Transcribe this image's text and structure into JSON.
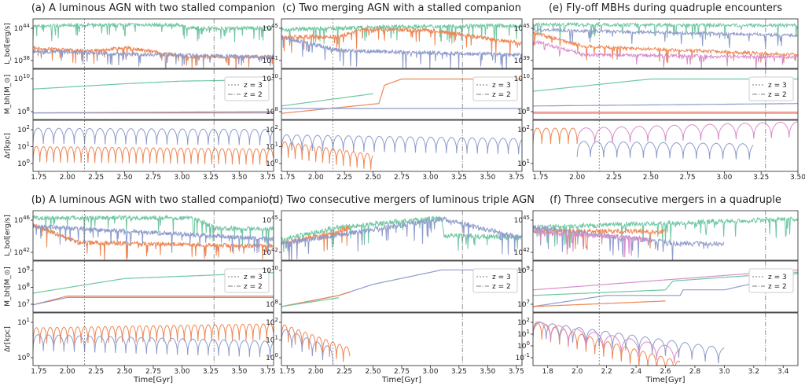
{
  "colors": {
    "green": "#6fc7a2",
    "orange": "#ee8654",
    "blue": "#8e9bcb",
    "pink": "#d98bcb",
    "gray": "#7a7a7a"
  },
  "panels": [
    {
      "id": "a",
      "title": "(a) A luminous AGN with two stalled companion",
      "xticks": [
        "1.75",
        "2.00",
        "2.25",
        "2.50",
        "2.75",
        "3.00",
        "3.25",
        "3.50",
        "3.75"
      ],
      "xlim": [
        1.7,
        3.8
      ],
      "lum_ticks": [
        "10^44",
        "10^38"
      ],
      "mass_ticks": [
        "10^10",
        "10^8"
      ],
      "dist_ticks": [
        "10^2",
        "10^1",
        "10^0"
      ],
      "xlabel": "",
      "z3": 2.15,
      "z2": 3.28
    },
    {
      "id": "c",
      "title": "(c) Two merging AGN with a stalled companion",
      "xticks": [
        "1.75",
        "2.00",
        "2.25",
        "2.50",
        "2.75",
        "3.00",
        "3.25",
        "3.50",
        "3.75"
      ],
      "xlim": [
        1.7,
        3.8
      ],
      "lum_ticks": [
        "10^45",
        "10^41"
      ],
      "mass_ticks": [
        "10^10",
        "10^8"
      ],
      "dist_ticks": [
        "10^2",
        "10^1",
        "10^0"
      ],
      "xlabel": "",
      "z3": 2.15,
      "z2": 3.28
    },
    {
      "id": "e",
      "title": "(e) Fly-off MBHs during quadruple encounters",
      "xticks": [
        "1.75",
        "2.00",
        "2.25",
        "2.50",
        "2.75",
        "3.00",
        "3.25",
        "3.50"
      ],
      "xlim": [
        1.7,
        3.5
      ],
      "lum_ticks": [
        "10^45",
        "10^39"
      ],
      "mass_ticks": [
        "10^10",
        "10^8"
      ],
      "dist_ticks": [
        "10^2",
        "10^1"
      ],
      "xlabel": "",
      "z3": 2.15,
      "z2": 3.28
    },
    {
      "id": "b",
      "title": "(b) A luminous AGN with two stalled companion",
      "xticks": [
        "1.75",
        "2.00",
        "2.25",
        "2.50",
        "2.75",
        "3.00",
        "3.25",
        "3.50",
        "3.75"
      ],
      "xlim": [
        1.7,
        3.8
      ],
      "lum_ticks": [
        "10^46",
        "10^42"
      ],
      "mass_ticks": [
        "10^9",
        "10^8",
        "10^7"
      ],
      "dist_ticks": [
        "10^1",
        "10^0"
      ],
      "xlabel": "Time[Gyr]",
      "z3": 2.15,
      "z2": 3.28
    },
    {
      "id": "d",
      "title": "(d) Two consecutive mergers of luminous triple AGN",
      "xticks": [
        "1.75",
        "2.00",
        "2.25",
        "2.50",
        "2.75",
        "3.00",
        "3.25",
        "3.50",
        "3.75"
      ],
      "xlim": [
        1.7,
        3.8
      ],
      "lum_ticks": [
        "10^45",
        "10^42"
      ],
      "mass_ticks": [
        "10^10",
        "10^8"
      ],
      "dist_ticks": [
        "10^2",
        "10^1",
        "10^0"
      ],
      "xlabel": "Time[Gyr]",
      "z3": 2.15,
      "z2": 3.28
    },
    {
      "id": "f",
      "title": "(f) Three consecutive mergers in a quadruple",
      "xticks": [
        "1.8",
        "2.0",
        "2.2",
        "2.4",
        "2.6",
        "2.8",
        "3.0",
        "3.2",
        "3.4"
      ],
      "xlim": [
        1.7,
        3.5
      ],
      "lum_ticks": [
        "10^45",
        "10^42"
      ],
      "mass_ticks": [
        "10^9",
        "10^7"
      ],
      "dist_ticks": [
        "10^2",
        "10^1",
        "10^0",
        "10^-1"
      ],
      "xlabel": "Time[Gyr]",
      "z3": 2.15,
      "z2": 3.28
    }
  ],
  "ylabels": {
    "lum": "L_bol[erg/s]",
    "mass": "M_bh[M_⊙]",
    "dist": "Δr[kpc]"
  },
  "legend": {
    "z3": "z = 3",
    "z2": "z = 2"
  },
  "chart_data": [
    {
      "type": "line",
      "panel": "a",
      "title": "(a) A luminous AGN with two stalled companion",
      "ylabel": "L_bol[erg/s], M_bh[M_⊙], Δr[kpc]",
      "xlim": [
        1.7,
        3.8
      ],
      "series": [
        {
          "values": [
            [
              1.7,
              44.3
            ],
            [
              2.0,
              44.5
            ],
            [
              2.5,
              44.6
            ],
            [
              3.0,
              44.5
            ],
            [
              3.05,
              44.0
            ],
            [
              3.8,
              44.0
            ]
          ]
        },
        {
          "values": [
            [
              1.7,
              40.5
            ],
            [
              2.2,
              40.0
            ],
            [
              2.5,
              40.6
            ],
            [
              3.05,
              39.0
            ],
            [
              3.8,
              39.0
            ]
          ]
        },
        {
          "values": [
            [
              1.7,
              40.0
            ],
            [
              2.5,
              39.5
            ],
            [
              3.0,
              39.3
            ],
            [
              3.8,
              39.0
            ]
          ]
        }
      ],
      "mass": {
        "green": [
          [
            1.7,
            9.4
          ],
          [
            2.5,
            9.8
          ],
          [
            3.0,
            10.0
          ],
          [
            3.8,
            10.1
          ]
        ],
        "orange": [
          [
            1.7,
            7.6
          ],
          [
            3.8,
            7.7
          ]
        ],
        "blue": [
          [
            1.7,
            7.6
          ],
          [
            3.8,
            7.6
          ]
        ]
      },
      "dist": {
        "orange": [
          [
            1.7,
            0.6
          ],
          [
            3.8,
            0.4
          ]
        ],
        "blue": [
          [
            1.7,
            2.0
          ],
          [
            3.8,
            1.9
          ]
        ]
      }
    },
    {
      "type": "line",
      "panel": "c",
      "title": "(c) Two merging AGN with a stalled companion",
      "xlim": [
        1.7,
        3.8
      ],
      "series": [
        {
          "values": [
            [
              1.7,
              44.6
            ],
            [
              2.2,
              44.8
            ],
            [
              2.6,
              45.0
            ],
            [
              3.8,
              45.2
            ]
          ]
        },
        {
          "values": [
            [
              1.7,
              43.5
            ],
            [
              2.2,
              43.5
            ],
            [
              2.4,
              44.6
            ],
            [
              3.0,
              44.5
            ],
            [
              3.8,
              42.5
            ]
          ]
        },
        {
          "values": [
            [
              1.7,
              43.5
            ],
            [
              2.2,
              41.5
            ],
            [
              3.8,
              40.8
            ]
          ]
        }
      ],
      "mass": {
        "green": [
          [
            1.7,
            7.8
          ],
          [
            2.5,
            8.8
          ]
        ],
        "orange": [
          [
            1.7,
            7.2
          ],
          [
            2.55,
            8.0
          ],
          [
            2.6,
            9.5
          ],
          [
            2.75,
            10.0
          ],
          [
            3.8,
            10.0
          ]
        ],
        "blue": [
          [
            1.7,
            7.6
          ],
          [
            3.8,
            7.6
          ]
        ]
      },
      "dist": {
        "orange": [
          [
            1.7,
            1.0
          ],
          [
            2.5,
            0.0
          ]
        ],
        "blue": [
          [
            1.7,
            1.5
          ],
          [
            3.8,
            1.2
          ]
        ]
      }
    },
    {
      "type": "line",
      "panel": "e",
      "title": "(e) Fly-off MBHs during quadruple encounters",
      "xlim": [
        1.7,
        3.5
      ],
      "series": [
        {
          "values": [
            [
              1.7,
              45.0
            ],
            [
              3.5,
              44.8
            ]
          ]
        },
        {
          "values": [
            [
              1.7,
              43.5
            ],
            [
              2.05,
              41.0
            ],
            [
              3.5,
              39.5
            ]
          ]
        },
        {
          "values": [
            [
              1.7,
              44.0
            ],
            [
              3.5,
              43.0
            ]
          ]
        },
        {
          "values": [
            [
              1.7,
              42.0
            ],
            [
              2.05,
              39.5
            ],
            [
              3.5,
              39.0
            ]
          ]
        }
      ],
      "mass": {
        "green": [
          [
            1.7,
            9.0
          ],
          [
            2.5,
            10.0
          ],
          [
            3.5,
            10.0
          ]
        ],
        "blue": [
          [
            1.7,
            7.8
          ],
          [
            3.5,
            8.0
          ]
        ],
        "orange": [
          [
            1.7,
            7.3
          ],
          [
            3.5,
            7.3
          ]
        ],
        "pink": [
          [
            1.7,
            7.2
          ],
          [
            3.5,
            7.2
          ]
        ]
      },
      "dist": {
        "orange": [
          [
            1.7,
            2.0
          ],
          [
            2.0,
            2.0
          ]
        ],
        "blue": [
          [
            2.0,
            1.0
          ],
          [
            3.2,
            0.8
          ]
        ],
        "pink": [
          [
            2.0,
            2.0
          ],
          [
            3.5,
            2.5
          ]
        ]
      }
    },
    {
      "type": "line",
      "panel": "b",
      "title": "(b) A luminous AGN with two stalled companion",
      "xlabel": "Time[Gyr]",
      "xlim": [
        1.7,
        3.8
      ],
      "series": [
        {
          "values": [
            [
              1.7,
              45.5
            ],
            [
              3.1,
              45.5
            ],
            [
              3.3,
              44.0
            ],
            [
              3.8,
              44.0
            ]
          ]
        },
        {
          "values": [
            [
              1.7,
              44.5
            ],
            [
              2.1,
              42.0
            ],
            [
              3.8,
              41.5
            ]
          ]
        },
        {
          "values": [
            [
              1.7,
              44.3
            ],
            [
              3.8,
              42.5
            ]
          ]
        }
      ],
      "mass": {
        "green": [
          [
            1.7,
            7.8
          ],
          [
            2.5,
            8.8
          ],
          [
            3.8,
            9.2
          ]
        ],
        "orange": [
          [
            1.7,
            7.0
          ],
          [
            2.0,
            7.6
          ],
          [
            3.8,
            7.6
          ]
        ],
        "blue": [
          [
            1.7,
            7.0
          ],
          [
            2.0,
            7.5
          ],
          [
            3.8,
            7.5
          ]
        ]
      },
      "dist": {
        "orange": [
          [
            1.7,
            1.5
          ],
          [
            3.8,
            1.8
          ]
        ],
        "blue": [
          [
            1.7,
            1.0
          ],
          [
            3.8,
            0.5
          ]
        ]
      }
    },
    {
      "type": "line",
      "panel": "d",
      "title": "(d) Two consecutive mergers of luminous triple AGN",
      "xlabel": "Time[Gyr]",
      "xlim": [
        1.7,
        3.8
      ],
      "series": [
        {
          "values": [
            [
              1.7,
              43.0
            ],
            [
              2.2,
              44.5
            ],
            [
              3.0,
              45.5
            ],
            [
              3.1,
              45.5
            ],
            [
              3.12,
              43.5
            ],
            [
              3.8,
              43.2
            ]
          ]
        },
        {
          "values": [
            [
              1.7,
              42.5
            ],
            [
              2.2,
              44.0
            ],
            [
              2.3,
              44.5
            ]
          ]
        },
        {
          "values": [
            [
              1.7,
              42.5
            ],
            [
              3.1,
              45.5
            ],
            [
              3.8,
              43.2
            ]
          ]
        }
      ],
      "mass": {
        "blue": [
          [
            1.7,
            6.5
          ],
          [
            2.2,
            7.5
          ],
          [
            2.5,
            8.5
          ],
          [
            3.1,
            9.8
          ],
          [
            3.8,
            9.8
          ]
        ],
        "orange": [
          [
            1.7,
            6.5
          ],
          [
            2.2,
            7.5
          ],
          [
            2.3,
            7.8
          ]
        ],
        "green": [
          [
            1.7,
            6.5
          ],
          [
            2.2,
            7.3
          ]
        ]
      },
      "dist": {
        "orange": [
          [
            1.7,
            1.8
          ],
          [
            2.3,
            0.0
          ]
        ],
        "blue": [
          [
            1.7,
            1.5
          ],
          [
            2.15,
            0.0
          ]
        ]
      }
    },
    {
      "type": "line",
      "panel": "f",
      "title": "(f) Three consecutive mergers in a quadruple",
      "xlabel": "Time[Gyr]",
      "xlim": [
        1.7,
        3.5
      ],
      "series": [
        {
          "values": [
            [
              1.7,
              44.5
            ],
            [
              3.5,
              45.5
            ]
          ]
        },
        {
          "values": [
            [
              1.7,
              44.0
            ],
            [
              2.6,
              44.0
            ]
          ]
        },
        {
          "values": [
            [
              1.7,
              44.5
            ],
            [
              2.7,
              42.5
            ],
            [
              3.0,
              42.5
            ]
          ]
        },
        {
          "values": [
            [
              1.7,
              44.0
            ],
            [
              2.5,
              43.0
            ]
          ]
        }
      ],
      "mass": {
        "pink": [
          [
            1.7,
            7.5
          ],
          [
            3.5,
            9.3
          ]
        ],
        "green": [
          [
            1.7,
            7.0
          ],
          [
            2.6,
            7.5
          ],
          [
            2.65,
            8.3
          ],
          [
            3.5,
            9.1
          ]
        ],
        "blue": [
          [
            1.7,
            6.0
          ],
          [
            2.2,
            7.0
          ],
          [
            2.7,
            7.0
          ],
          [
            2.72,
            7.5
          ],
          [
            3.0,
            7.5
          ],
          [
            3.5,
            9.0
          ]
        ],
        "orange": [
          [
            1.7,
            6.0
          ],
          [
            2.6,
            6.5
          ]
        ]
      },
      "dist": {
        "orange": [
          [
            1.7,
            2.0
          ],
          [
            2.7,
            -1.0
          ]
        ],
        "blue": [
          [
            1.7,
            2.0
          ],
          [
            3.0,
            0.0
          ]
        ],
        "pink": [
          [
            1.7,
            2.0
          ],
          [
            2.7,
            0.0
          ]
        ]
      }
    }
  ]
}
